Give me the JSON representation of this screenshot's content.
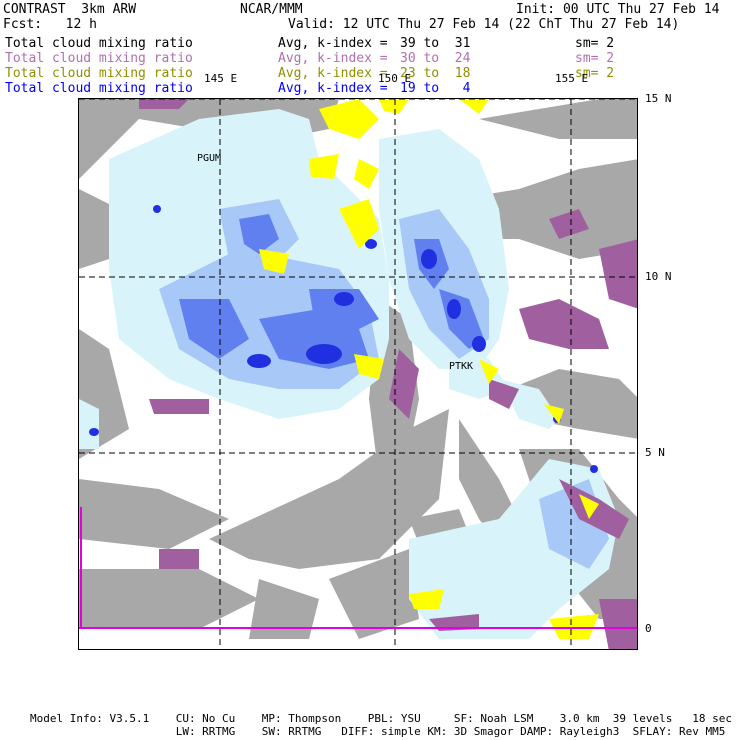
{
  "header": {
    "left1": "CONTRAST  3km ARW",
    "center1": "NCAR/MMM",
    "right1": "Init: 00 UTC Thu 27 Feb 14",
    "left2": "Fcst:   12 h",
    "right2": "Valid: 12 UTC Thu 27 Feb 14 (22 ChT Thu 27 Feb 14)"
  },
  "legend": [
    {
      "field": "Total cloud mixing ratio",
      "avg": "Avg, k-index =",
      "range": "39 to  31",
      "sm": "sm= 2",
      "color": "#000000"
    },
    {
      "field": "Total cloud mixing ratio",
      "avg": "Avg, k-index =",
      "range": "30 to  24",
      "sm": "sm= 2",
      "color": "#b070b0"
    },
    {
      "field": "Total cloud mixing ratio",
      "avg": "Avg, k-index =",
      "range": "23 to  18",
      "sm": "sm= 2",
      "color": "#909000"
    },
    {
      "field": "Total cloud mixing ratio",
      "avg": "Avg, k-index =",
      "range": "19 to   4",
      "sm": "",
      "color": "#0000ff"
    }
  ],
  "map": {
    "lon_labels": [
      "145 E",
      "150 E",
      "155 E"
    ],
    "lat_labels": [
      "15 N",
      "10 N",
      "5 N",
      "0"
    ],
    "stations": [
      "PGUM",
      "PTKK"
    ],
    "colors": {
      "gray": "#a8a8a8",
      "purple": "#a060a0",
      "yellow": "#ffff00",
      "lightblue": "#d8f4fa",
      "midblue": "#a8c8f8",
      "blue": "#6080f0",
      "deepblue": "#2030e0",
      "magenta": "#e000e0"
    }
  },
  "footer": {
    "line1": "Model Info: V3.5.1    CU: No Cu    MP: Thompson    PBL: YSU     SF: Noah LSM    3.0 km  39 levels   18 sec",
    "line2": "                      LW: RRTMG    SW: RRTMG   DIFF: simple KM: 3D Smagor DAMP: Rayleigh3  SFLAY: Rev MM5"
  }
}
